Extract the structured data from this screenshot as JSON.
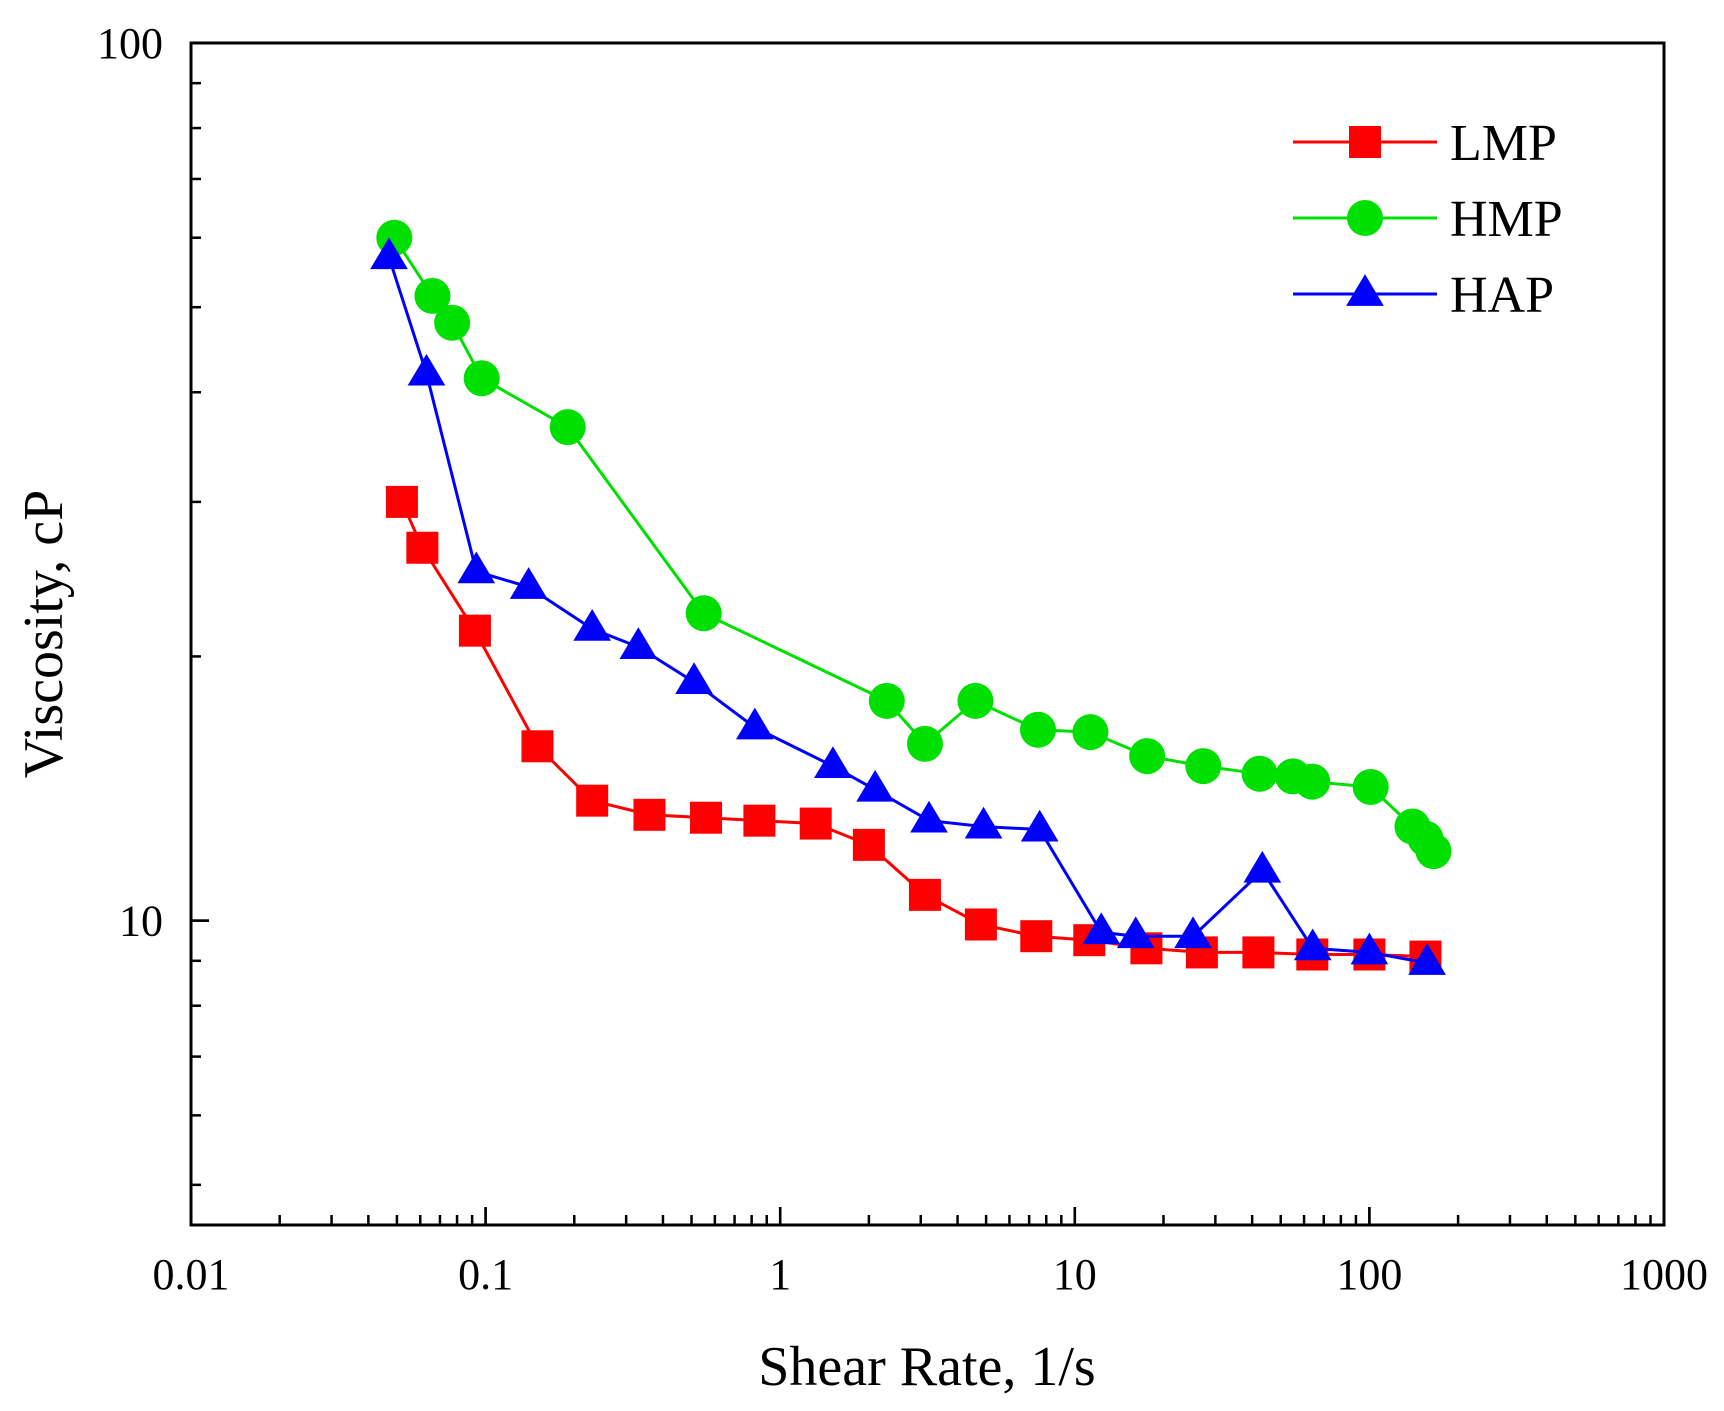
{
  "chart_data": {
    "type": "line",
    "title": "",
    "xlabel": "Shear Rate, 1/s",
    "ylabel": "Viscosity, cP",
    "xscale": "log",
    "yscale": "log",
    "xlim": [
      0.01,
      1000
    ],
    "ylim": [
      4.5,
      100
    ],
    "grid": false,
    "legend_position": "top-right",
    "x_ticks": [
      {
        "value": 0.01,
        "label": "0.01"
      },
      {
        "value": 0.1,
        "label": "0.1"
      },
      {
        "value": 1,
        "label": "1"
      },
      {
        "value": 10,
        "label": "10"
      },
      {
        "value": 100,
        "label": "100"
      },
      {
        "value": 1000,
        "label": "1000"
      }
    ],
    "y_ticks": [
      {
        "value": 10,
        "label": "10"
      },
      {
        "value": 100,
        "label": "100"
      }
    ],
    "series": [
      {
        "name": "LMP",
        "color": "#ff0000",
        "marker": "square",
        "x": [
          0.052,
          0.061,
          0.092,
          0.15,
          0.23,
          0.36,
          0.56,
          0.85,
          1.32,
          2.0,
          3.1,
          4.8,
          7.4,
          11.2,
          17.5,
          27,
          42,
          64,
          100,
          155
        ],
        "y": [
          30.0,
          26.6,
          21.4,
          15.8,
          13.7,
          13.2,
          13.1,
          13.0,
          12.9,
          12.2,
          10.7,
          9.9,
          9.6,
          9.5,
          9.3,
          9.2,
          9.2,
          9.15,
          9.15,
          9.1
        ]
      },
      {
        "name": "HMP",
        "color": "#00e000",
        "marker": "circle",
        "x": [
          0.049,
          0.066,
          0.077,
          0.097,
          0.19,
          0.55,
          2.3,
          3.1,
          4.6,
          7.5,
          11.3,
          17.6,
          27.3,
          42.4,
          55,
          64,
          101,
          140,
          155,
          165
        ],
        "y": [
          60.0,
          51.5,
          48.0,
          41.5,
          36.5,
          22.4,
          17.8,
          15.9,
          17.8,
          16.5,
          16.4,
          15.4,
          15.0,
          14.7,
          14.6,
          14.4,
          14.2,
          12.8,
          12.4,
          12.0
        ]
      },
      {
        "name": "HAP",
        "color": "#0000ff",
        "marker": "triangle",
        "x": [
          0.047,
          0.063,
          0.093,
          0.14,
          0.23,
          0.33,
          0.51,
          0.82,
          1.51,
          2.1,
          3.2,
          4.9,
          7.6,
          12.3,
          16.1,
          25.2,
          43.3,
          64.2,
          100,
          157
        ],
        "y": [
          57.0,
          42.0,
          25.0,
          24.0,
          21.5,
          20.5,
          18.7,
          16.6,
          15.0,
          14.1,
          13.0,
          12.8,
          12.7,
          9.7,
          9.6,
          9.6,
          11.4,
          9.3,
          9.2,
          8.95
        ]
      }
    ]
  }
}
